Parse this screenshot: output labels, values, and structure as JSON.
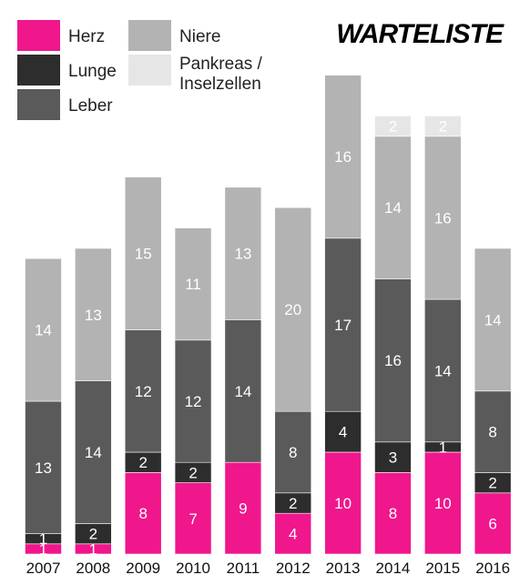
{
  "chart_data": {
    "type": "bar",
    "stacked": true,
    "title": "WARTELISTE",
    "categories": [
      "2007",
      "2008",
      "2009",
      "2010",
      "2011",
      "2012",
      "2013",
      "2014",
      "2015",
      "2016"
    ],
    "series": [
      {
        "name": "Herz",
        "color": "#f0168c",
        "values": [
          1,
          1,
          8,
          7,
          9,
          4,
          10,
          8,
          10,
          6
        ]
      },
      {
        "name": "Lunge",
        "color": "#2d2d2d",
        "values": [
          1,
          2,
          2,
          2,
          0,
          2,
          4,
          3,
          1,
          2
        ]
      },
      {
        "name": "Leber",
        "color": "#5a5a5a",
        "values": [
          13,
          14,
          12,
          12,
          14,
          8,
          17,
          16,
          14,
          8
        ]
      },
      {
        "name": "Niere",
        "color": "#b3b3b3",
        "values": [
          14,
          13,
          15,
          11,
          13,
          20,
          16,
          14,
          16,
          14
        ]
      },
      {
        "name": "Pankreas / Inselzellen",
        "legend_lines": [
          "Pankreas /",
          "Inselzellen"
        ],
        "color": "#e6e6e6",
        "values": [
          0,
          0,
          0,
          0,
          0,
          0,
          0,
          2,
          2,
          0
        ]
      }
    ],
    "ylim": [
      0,
      48
    ],
    "grid": false,
    "legend_position": "top-left"
  }
}
